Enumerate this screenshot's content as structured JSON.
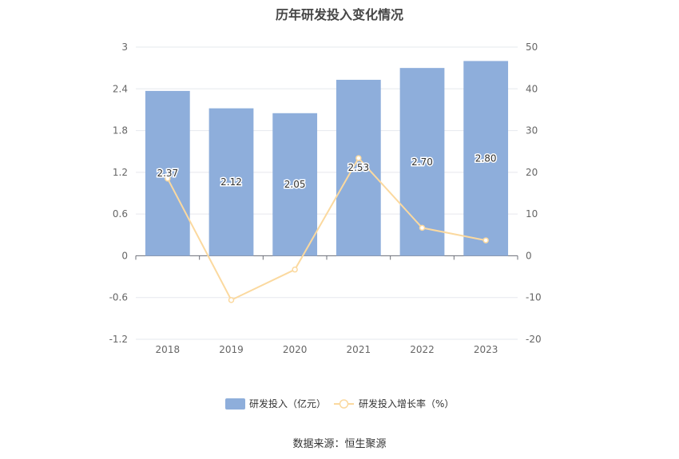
{
  "chart_data": {
    "type": "bar",
    "title": "历年研发投入变化情况",
    "categories": [
      "2018",
      "2019",
      "2020",
      "2021",
      "2022",
      "2023"
    ],
    "series": [
      {
        "name": "研发投入（亿元）",
        "type": "bar",
        "axis": "left",
        "values": [
          2.37,
          2.12,
          2.05,
          2.53,
          2.7,
          2.8
        ],
        "labels": [
          "2.37",
          "2.12",
          "2.05",
          "2.53",
          "2.70",
          "2.80"
        ],
        "color": "#8eaedb"
      },
      {
        "name": "研发投入增长率（%）",
        "type": "line",
        "axis": "right",
        "values": [
          18.5,
          -10.6,
          -3.3,
          23.4,
          6.7,
          3.7
        ],
        "color": "#fbd99f"
      }
    ],
    "y_left": {
      "min": -1.2,
      "max": 3,
      "ticks": [
        "3",
        "2.4",
        "1.8",
        "1.2",
        "0.6",
        "0",
        "-0.6",
        "-1.2"
      ]
    },
    "y_right": {
      "min": -20,
      "max": 50,
      "ticks": [
        "50",
        "40",
        "30",
        "20",
        "10",
        "0",
        "-10",
        "-20"
      ]
    },
    "grid": true,
    "legend_position": "bottom"
  },
  "source_note": "数据来源：恒生聚源"
}
